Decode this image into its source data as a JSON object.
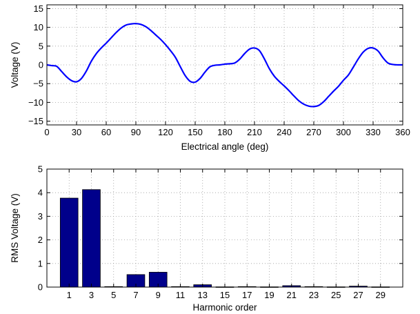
{
  "chart_data": [
    {
      "type": "line",
      "xlabel": "Electrical angle (deg)",
      "ylabel": "Voltage (V)",
      "xlim": [
        0,
        360
      ],
      "ylim": [
        -16,
        16
      ],
      "xticks": [
        0,
        30,
        60,
        90,
        120,
        150,
        180,
        210,
        240,
        270,
        300,
        330,
        360
      ],
      "yticks": [
        -15,
        -10,
        -5,
        0,
        5,
        10,
        15
      ],
      "grid": true,
      "line_color": "#0000ff",
      "series": [
        {
          "x": [
            0,
            5,
            10,
            15,
            20,
            25,
            30,
            35,
            40,
            45,
            50,
            55,
            60,
            65,
            70,
            75,
            80,
            85,
            90,
            95,
            100,
            105,
            110,
            115,
            120,
            125,
            130,
            135,
            140,
            145,
            150,
            155,
            160,
            165,
            170,
            175,
            180,
            185,
            190,
            195,
            200,
            205,
            210,
            215,
            220,
            225,
            230,
            235,
            240,
            245,
            250,
            255,
            260,
            265,
            270,
            275,
            280,
            285,
            290,
            295,
            300,
            305,
            310,
            315,
            320,
            325,
            330,
            335,
            340,
            345,
            350,
            355,
            360
          ],
          "y": [
            0,
            -0.2,
            -0.4,
            -1.8,
            -3.2,
            -4.2,
            -4.5,
            -3.6,
            -1.6,
            1.0,
            3.0,
            4.5,
            5.8,
            7.2,
            8.6,
            9.8,
            10.6,
            10.9,
            11.0,
            10.8,
            10.2,
            9.2,
            8.0,
            6.8,
            5.4,
            3.8,
            2.0,
            -0.5,
            -2.9,
            -4.4,
            -4.6,
            -3.6,
            -1.9,
            -0.5,
            -0.1,
            0.0,
            0.2,
            0.3,
            0.5,
            1.5,
            3.0,
            4.2,
            4.5,
            3.8,
            1.6,
            -1.0,
            -3.0,
            -4.4,
            -5.6,
            -6.9,
            -8.3,
            -9.6,
            -10.5,
            -11.0,
            -11.1,
            -10.8,
            -9.8,
            -8.4,
            -7.0,
            -5.7,
            -4.1,
            -2.7,
            -0.6,
            1.6,
            3.4,
            4.4,
            4.5,
            3.7,
            1.9,
            0.5,
            0.1,
            0.0,
            0.0
          ]
        }
      ]
    },
    {
      "type": "bar",
      "xlabel": "Harmonic order",
      "ylabel": "RMS Voltage (V)",
      "ylim": [
        0,
        5
      ],
      "yticks": [
        0,
        1,
        2,
        3,
        4,
        5
      ],
      "grid": true,
      "bar_color": "#00008b",
      "categories": [
        "1",
        "3",
        "5",
        "7",
        "9",
        "11",
        "13",
        "15",
        "17",
        "19",
        "21",
        "23",
        "25",
        "27",
        "29"
      ],
      "values": [
        3.77,
        4.13,
        0.02,
        0.53,
        0.63,
        0.02,
        0.1,
        0.01,
        0.02,
        0.01,
        0.06,
        0.02,
        0.01,
        0.04,
        0.01
      ]
    }
  ]
}
